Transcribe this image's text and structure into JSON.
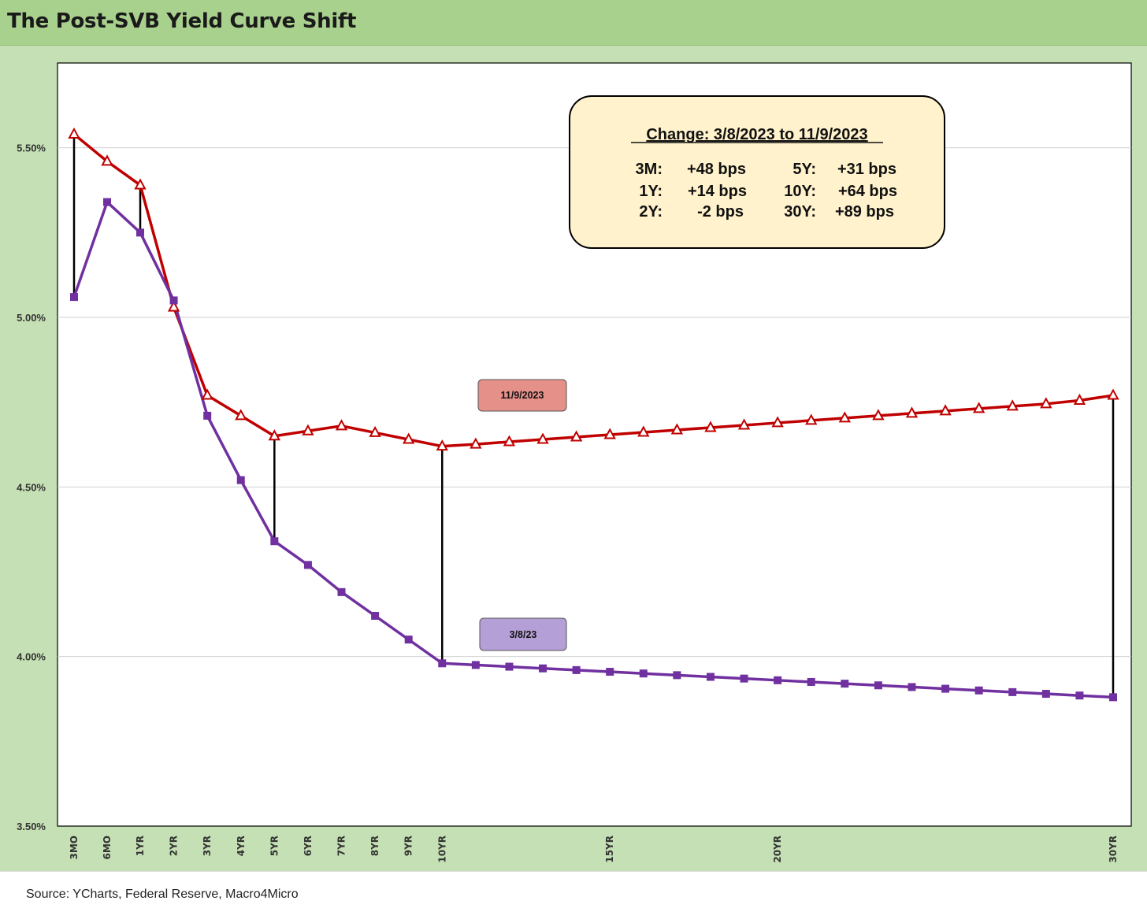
{
  "header": {
    "title": "The Post-SVB Yield Curve Shift"
  },
  "footer": {
    "source": "Source: YCharts, Federal Reserve, Macro4Micro"
  },
  "chart_data": {
    "type": "line",
    "title": "",
    "xlabel": "",
    "ylabel": "",
    "x": [
      0.25,
      0.5,
      1,
      2,
      3,
      4,
      5,
      6,
      7,
      8,
      9,
      10,
      11,
      12,
      13,
      14,
      15,
      16,
      17,
      18,
      19,
      20,
      21,
      22,
      23,
      24,
      25,
      26,
      27,
      28,
      29,
      30
    ],
    "x_tick_labels": [
      {
        "x": 0.25,
        "label": "3MO"
      },
      {
        "x": 0.5,
        "label": "6MO"
      },
      {
        "x": 1,
        "label": "1YR"
      },
      {
        "x": 2,
        "label": "2YR"
      },
      {
        "x": 3,
        "label": "3YR"
      },
      {
        "x": 4,
        "label": "4YR"
      },
      {
        "x": 5,
        "label": "5YR"
      },
      {
        "x": 6,
        "label": "6YR"
      },
      {
        "x": 7,
        "label": "7YR"
      },
      {
        "x": 8,
        "label": "8YR"
      },
      {
        "x": 9,
        "label": "9YR"
      },
      {
        "x": 10,
        "label": "10YR"
      },
      {
        "x": 15,
        "label": "15YR"
      },
      {
        "x": 20,
        "label": "20YR"
      },
      {
        "x": 30,
        "label": "30YR"
      }
    ],
    "ylim": [
      3.5,
      5.75
    ],
    "y_ticks": [
      3.5,
      4.0,
      4.5,
      5.0,
      5.5
    ],
    "y_tick_labels": [
      "3.50%",
      "4.00%",
      "4.50%",
      "5.00%",
      "5.50%"
    ],
    "grid": true,
    "series": [
      {
        "name": "11/9/2023",
        "color": "#c00000",
        "marker": "triangle-open",
        "values": [
          5.54,
          5.46,
          5.39,
          5.03,
          4.77,
          4.71,
          4.65,
          4.665,
          4.68,
          4.66,
          4.64,
          4.62,
          4.626,
          4.633,
          4.64,
          4.647,
          4.654,
          4.661,
          4.668,
          4.675,
          4.682,
          4.689,
          4.696,
          4.703,
          4.71,
          4.717,
          4.724,
          4.731,
          4.738,
          4.745,
          4.755,
          4.77
        ]
      },
      {
        "name": "3/8/23",
        "color": "#7030a0",
        "marker": "square",
        "values": [
          5.06,
          5.34,
          5.25,
          5.05,
          4.71,
          4.52,
          4.34,
          4.27,
          4.19,
          4.12,
          4.05,
          3.98,
          3.975,
          3.97,
          3.965,
          3.96,
          3.955,
          3.95,
          3.945,
          3.94,
          3.935,
          3.93,
          3.925,
          3.92,
          3.915,
          3.91,
          3.905,
          3.9,
          3.895,
          3.89,
          3.885,
          3.88
        ]
      }
    ],
    "connectors_x": [
      0.25,
      1,
      5,
      10,
      30
    ],
    "annotation_box": {
      "heading": "Change: 3/8/2023 to 11/9/2023",
      "rows": [
        [
          "3M:",
          "+48 bps",
          "5Y:",
          "+31 bps"
        ],
        [
          "1Y:",
          "+14 bps",
          "10Y:",
          "+64 bps"
        ],
        [
          "2Y:",
          "-2 bps",
          "30Y:",
          "+89 bps"
        ]
      ],
      "fill": "#fff2cc"
    },
    "series_tags": [
      {
        "label": "11/9/2023",
        "fill": "#e6908a"
      },
      {
        "label": "3/8/23",
        "fill": "#b4a0d6"
      }
    ]
  }
}
